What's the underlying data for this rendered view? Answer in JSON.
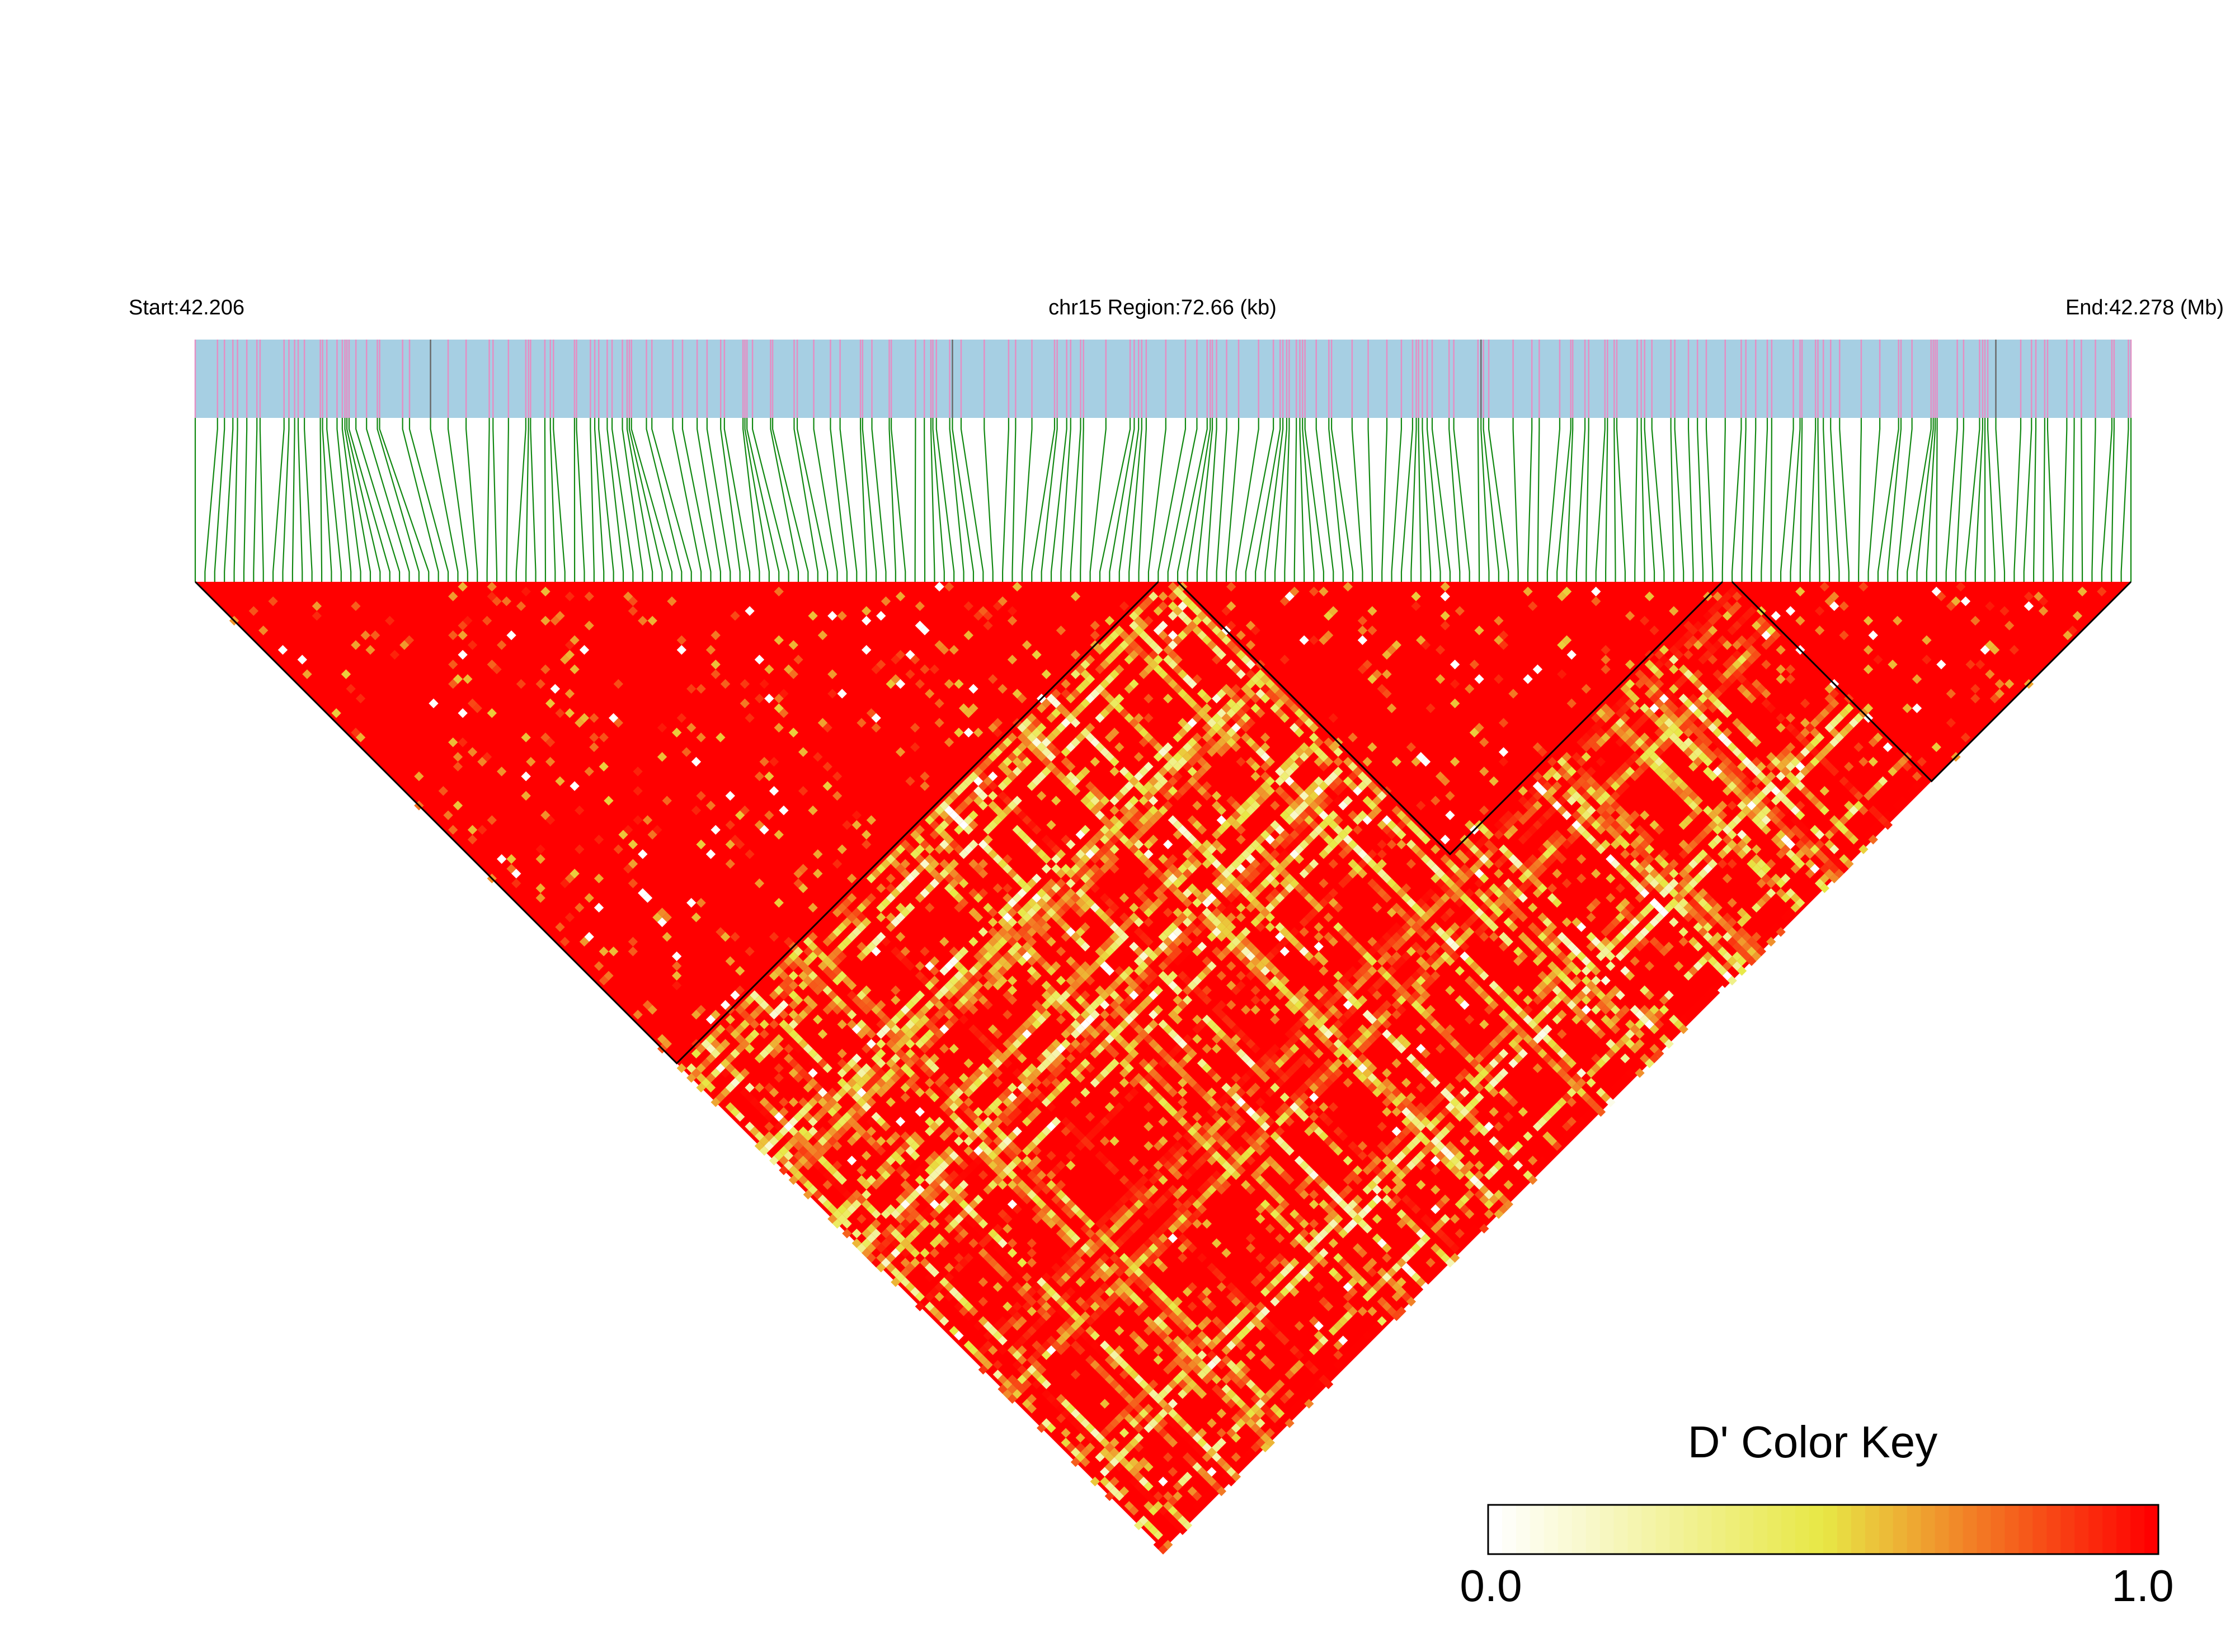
{
  "header": {
    "start_label": "Start:42.206",
    "region_label": "chr15 Region:72.66 (kb)",
    "end_label": "End:42.278 (Mb)"
  },
  "colors": {
    "track_bg": "#a6cfe3",
    "snp_tick": "#e48fc4",
    "snp_tick_dark": "#6a6a6a",
    "connector": "#118811",
    "high_ld": "#ff0000",
    "block_outline": "#000000",
    "key_low": "#ffffff",
    "key_mid": "#e8e845",
    "key_high": "#ff0000"
  },
  "chart_data": {
    "type": "heatmap",
    "chromosome": "chr15",
    "start_mb": 42.206,
    "end_mb": 42.278,
    "region_kb": 72.66,
    "measure": "D'",
    "snp_count": 200,
    "ld_blocks_snp_index": [
      [
        0,
        99
      ],
      [
        101,
        157
      ],
      [
        158,
        199
      ]
    ],
    "color_scale": {
      "min": 0.0,
      "max": 1.0,
      "colors": [
        "#ffffff",
        "#e8e845",
        "#ff0000"
      ]
    },
    "typical_d_prime": 1.0
  },
  "legend": {
    "title": "D' Color Key",
    "min_label": "0.0",
    "max_label": "1.0"
  }
}
